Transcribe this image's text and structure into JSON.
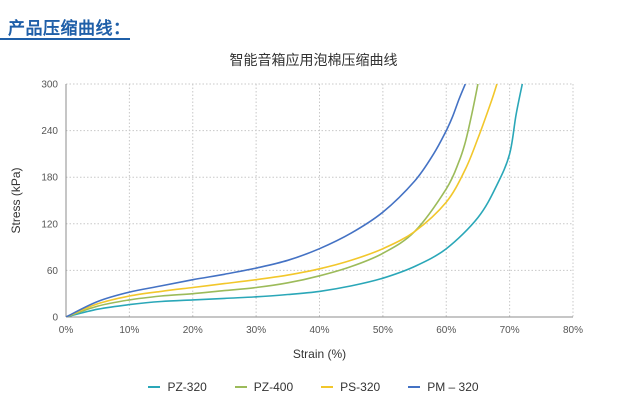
{
  "heading": "产品压缩曲线：",
  "chart_data": {
    "type": "line",
    "title": "智能音箱应用泡棉压缩曲线",
    "xlabel": "Strain (%)",
    "ylabel": "Stress (kPa)",
    "xlim": [
      0,
      80
    ],
    "ylim": [
      0,
      300
    ],
    "xticks": [
      0,
      10,
      20,
      30,
      40,
      50,
      60,
      70,
      80
    ],
    "xtick_labels": [
      "0%",
      "10%",
      "20%",
      "30%",
      "40%",
      "50%",
      "60%",
      "70%",
      "80%"
    ],
    "yticks": [
      0,
      60,
      120,
      180,
      240,
      300
    ],
    "ytick_labels": [
      "0",
      "60",
      "120",
      "180",
      "240",
      "300"
    ],
    "grid": true,
    "legend_position": "bottom",
    "series": [
      {
        "name": "PZ-320",
        "color": "#2aa7b8",
        "x": [
          0,
          5,
          10,
          15,
          20,
          25,
          30,
          35,
          40,
          45,
          50,
          55,
          60,
          65,
          68,
          70,
          71,
          72
        ],
        "y": [
          0,
          10,
          16,
          20,
          22,
          24,
          26,
          29,
          33,
          40,
          50,
          65,
          88,
          128,
          170,
          210,
          260,
          300
        ]
      },
      {
        "name": "PZ-400",
        "color": "#9cbb5a",
        "x": [
          0,
          5,
          10,
          15,
          20,
          25,
          30,
          35,
          40,
          45,
          50,
          55,
          60,
          62,
          63,
          64,
          65
        ],
        "y": [
          0,
          14,
          22,
          27,
          30,
          34,
          38,
          44,
          53,
          65,
          82,
          110,
          165,
          200,
          225,
          260,
          300
        ]
      },
      {
        "name": "PS-320",
        "color": "#f2c72b",
        "x": [
          0,
          5,
          10,
          15,
          20,
          25,
          30,
          35,
          40,
          45,
          50,
          55,
          60,
          63,
          65,
          67,
          68
        ],
        "y": [
          0,
          17,
          27,
          33,
          38,
          43,
          48,
          54,
          62,
          73,
          88,
          110,
          148,
          190,
          230,
          275,
          300
        ]
      },
      {
        "name": "PM – 320",
        "color": "#4472c4",
        "x": [
          0,
          5,
          10,
          15,
          20,
          25,
          30,
          35,
          40,
          45,
          50,
          55,
          58,
          60,
          61,
          62,
          63
        ],
        "y": [
          0,
          20,
          32,
          40,
          48,
          55,
          63,
          73,
          88,
          108,
          135,
          175,
          210,
          240,
          258,
          280,
          300
        ]
      }
    ]
  }
}
